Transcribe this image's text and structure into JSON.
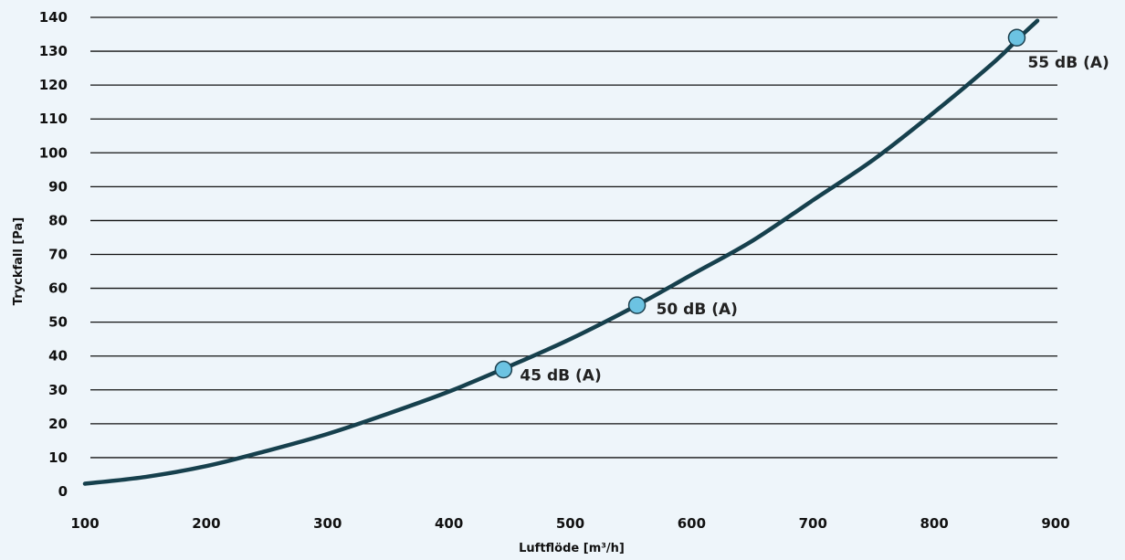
{
  "colors": {
    "background": "#eef5fa",
    "gridline": "#111111",
    "curve": "#16404d",
    "marker_fill": "#6cc3e2",
    "marker_stroke": "#1c3f4d"
  },
  "chart_data": {
    "type": "line",
    "title": "",
    "xlabel": "Luftflöde [m³/h]",
    "ylabel": "Tryckfall [Pa]",
    "xlim": [
      100,
      900
    ],
    "ylim": [
      0,
      140
    ],
    "x_ticks": [
      "100",
      "200",
      "300",
      "400",
      "500",
      "600",
      "700",
      "800",
      "900"
    ],
    "y_ticks": [
      "0",
      "10",
      "20",
      "30",
      "40",
      "50",
      "60",
      "70",
      "80",
      "90",
      "100",
      "110",
      "120",
      "130",
      "140"
    ],
    "grid": "horizontal",
    "series": [
      {
        "x": [
          100,
          150,
          200,
          250,
          300,
          350,
          400,
          450,
          500,
          555,
          600,
          650,
          700,
          750,
          800,
          850,
          870,
          885
        ],
        "y": [
          2.3,
          4.3,
          7.5,
          12,
          17,
          23,
          29.5,
          37,
          45,
          55,
          64,
          74,
          86,
          98,
          112,
          127,
          134,
          139
        ]
      }
    ],
    "points": [
      {
        "x": 445,
        "y": 36,
        "label": "45 dB (A)"
      },
      {
        "x": 555,
        "y": 55,
        "label": "50 dB (A)"
      },
      {
        "x": 868,
        "y": 134,
        "label": "55 dB (A)"
      }
    ]
  }
}
